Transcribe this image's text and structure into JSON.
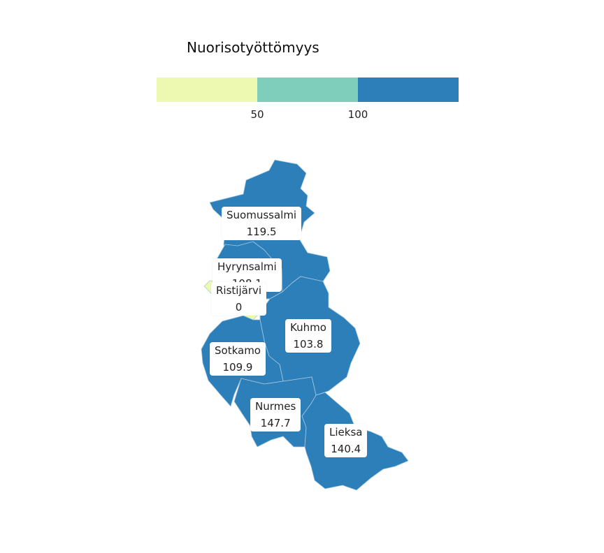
{
  "legend": {
    "title": "Nuorisotyöttömyys",
    "bins": [
      {
        "color": "#edf8b1"
      },
      {
        "color": "#7fcdbb"
      },
      {
        "color": "#2c7fb8"
      }
    ],
    "ticks": [
      "50",
      "100"
    ]
  },
  "regions": [
    {
      "name": "Suomussalmi",
      "value": "119.5",
      "color": "#2c7fb8"
    },
    {
      "name": "Hyrynsalmi",
      "value": "108.1",
      "color": "#2c7fb8"
    },
    {
      "name": "Ristijärvi",
      "value": "0",
      "color": "#edf8b1"
    },
    {
      "name": "Kuhmo",
      "value": "103.8",
      "color": "#2c7fb8"
    },
    {
      "name": "Sotkamo",
      "value": "109.9",
      "color": "#2c7fb8"
    },
    {
      "name": "Nurmes",
      "value": "147.7",
      "color": "#2c7fb8"
    },
    {
      "name": "Lieksa",
      "value": "140.4",
      "color": "#2c7fb8"
    }
  ]
}
